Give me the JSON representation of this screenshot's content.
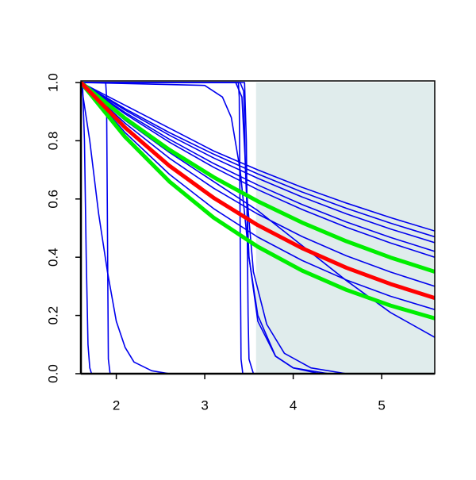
{
  "chart_data": {
    "type": "line",
    "xlim": [
      1.6,
      5.6
    ],
    "ylim": [
      0,
      1
    ],
    "xticks": [
      2,
      3,
      4,
      5
    ],
    "yticks": [
      {
        "value": 0,
        "label": "0.0"
      },
      0.2,
      0.4,
      0.6,
      0.8,
      {
        "value": 1,
        "label": "1.0"
      }
    ],
    "shade_x": [
      3.58,
      5.6
    ],
    "shade_color": "#e0ecec",
    "series": [
      {
        "color": "#0000ee",
        "lw": 1.6,
        "x": [
          1.6,
          3.1,
          3.6,
          4.1,
          4.6,
          5.1,
          5.6
        ],
        "values": [
          1,
          0.765,
          0.7,
          0.64,
          0.586,
          0.536,
          0.49
        ]
      },
      {
        "color": "#0000ee",
        "lw": 1.6,
        "x": [
          1.6,
          2.1,
          2.6,
          3.1,
          3.6,
          4.1,
          4.6,
          5.1,
          5.6
        ],
        "values": [
          1,
          0.91,
          0.828,
          0.754,
          0.686,
          0.624,
          0.568,
          0.517,
          0.47
        ]
      },
      {
        "color": "#0000ee",
        "lw": 1.6,
        "x": [
          1.6,
          2.1,
          2.6,
          3.1,
          3.6,
          4.1,
          4.6,
          5.1,
          5.6
        ],
        "values": [
          1,
          0.905,
          0.819,
          0.741,
          0.671,
          0.607,
          0.549,
          0.497,
          0.45
        ]
      },
      {
        "color": "#0000ee",
        "lw": 1.6,
        "x": [
          1.6,
          2.1,
          2.6,
          3.1,
          3.6,
          4.1,
          4.6,
          5.1,
          5.6
        ],
        "values": [
          1,
          0.897,
          0.805,
          0.722,
          0.648,
          0.581,
          0.521,
          0.468,
          0.42
        ]
      },
      {
        "color": "#0000ee",
        "lw": 1.6,
        "x": [
          1.6,
          2.1,
          2.6,
          3.1,
          3.6,
          4.1,
          4.6,
          5.1,
          5.6
        ],
        "values": [
          1,
          0.892,
          0.795,
          0.709,
          0.632,
          0.564,
          0.503,
          0.449,
          0.4
        ]
      },
      {
        "color": "#0000ee",
        "lw": 1.6,
        "x": [
          1.6,
          2.1,
          2.6,
          3.1,
          3.6,
          4.1,
          4.6,
          5.1,
          5.6
        ],
        "values": [
          1,
          0.86,
          0.74,
          0.637,
          0.548,
          0.471,
          0.405,
          0.349,
          0.3
        ]
      },
      {
        "color": "#0000ee",
        "lw": 1.6,
        "x": [
          1.6,
          2.1,
          2.6,
          3.1,
          3.6,
          4.1,
          4.6,
          5.1,
          5.6
        ],
        "values": [
          1,
          0.828,
          0.685,
          0.567,
          0.469,
          0.389,
          0.322,
          0.266,
          0.22
        ]
      },
      {
        "color": "#0000ee",
        "lw": 1.6,
        "x": [
          1.6,
          2.1,
          2.6,
          3.1,
          3.6,
          4.1,
          4.6,
          5.1,
          5.6
        ],
        "values": [
          1,
          0.87,
          0.76,
          0.66,
          0.56,
          0.44,
          0.32,
          0.21,
          0.125
        ]
      },
      {
        "color": "#0000ee",
        "lw": 1.6,
        "x": [
          1.6,
          1.62,
          1.64,
          1.66,
          1.68,
          1.7,
          1.72
        ],
        "values": [
          1,
          0.98,
          0.8,
          0.4,
          0.1,
          0.02,
          0
        ]
      },
      {
        "color": "#0000ee",
        "lw": 1.6,
        "x": [
          1.6,
          1.7,
          1.8,
          1.9,
          2.0,
          2.1,
          2.2,
          2.4,
          2.6
        ],
        "values": [
          1,
          0.8,
          0.55,
          0.35,
          0.18,
          0.09,
          0.04,
          0.01,
          0
        ]
      },
      {
        "color": "#0000ee",
        "lw": 1.6,
        "x": [
          1.6,
          1.88,
          1.89,
          1.9,
          1.91,
          1.93,
          2.0
        ],
        "values": [
          1,
          1,
          0.95,
          0.5,
          0.05,
          0,
          0
        ]
      },
      {
        "color": "#0000ee",
        "lw": 1.6,
        "x": [
          1.6,
          3.38,
          3.39,
          3.4,
          3.41,
          3.43,
          3.6
        ],
        "values": [
          1,
          1,
          0.95,
          0.5,
          0.05,
          0,
          0
        ]
      },
      {
        "color": "#0000ee",
        "lw": 1.6,
        "x": [
          1.6,
          3.0,
          3.2,
          3.3,
          3.4,
          3.5,
          3.6,
          3.8,
          4.0,
          4.4
        ],
        "values": [
          1,
          0.99,
          0.95,
          0.88,
          0.7,
          0.4,
          0.2,
          0.06,
          0.02,
          0
        ]
      },
      {
        "color": "#0000ee",
        "lw": 1.6,
        "x": [
          1.6,
          3.4,
          3.44,
          3.46,
          3.5,
          3.6,
          3.8,
          4.0,
          4.3
        ],
        "values": [
          1,
          1,
          0.97,
          0.7,
          0.4,
          0.18,
          0.06,
          0.02,
          0
        ]
      },
      {
        "color": "#0000ee",
        "lw": 1.6,
        "x": [
          1.6,
          3.35,
          3.42,
          3.48,
          3.55,
          3.7,
          3.9,
          4.2,
          4.6
        ],
        "values": [
          1,
          1,
          0.95,
          0.6,
          0.35,
          0.17,
          0.07,
          0.02,
          0
        ]
      },
      {
        "color": "#0000ee",
        "lw": 1.6,
        "x": [
          1.6,
          3.45,
          3.47,
          3.49,
          3.5,
          3.55
        ],
        "values": [
          1,
          1,
          0.8,
          0.2,
          0.05,
          0
        ]
      },
      {
        "color": "#00ee00",
        "lw": 5,
        "x": [
          1.6,
          2.1,
          2.6,
          3.1,
          3.6,
          4.1,
          4.6,
          5.1,
          5.6
        ],
        "values": [
          1,
          0.877,
          0.769,
          0.675,
          0.592,
          0.519,
          0.455,
          0.399,
          0.35
        ]
      },
      {
        "color": "#00ee00",
        "lw": 5,
        "x": [
          1.6,
          2.1,
          2.6,
          3.1,
          3.6,
          4.1,
          4.6,
          5.1,
          5.6
        ],
        "values": [
          1,
          0.813,
          0.66,
          0.536,
          0.436,
          0.354,
          0.288,
          0.234,
          0.19
        ]
      },
      {
        "color": "#ff0000",
        "lw": 5,
        "x": [
          1.6,
          2.1,
          2.6,
          3.1,
          3.6,
          4.1,
          4.6,
          5.1,
          5.6
        ],
        "values": [
          1,
          0.845,
          0.714,
          0.604,
          0.51,
          0.431,
          0.364,
          0.308,
          0.26
        ]
      }
    ]
  }
}
